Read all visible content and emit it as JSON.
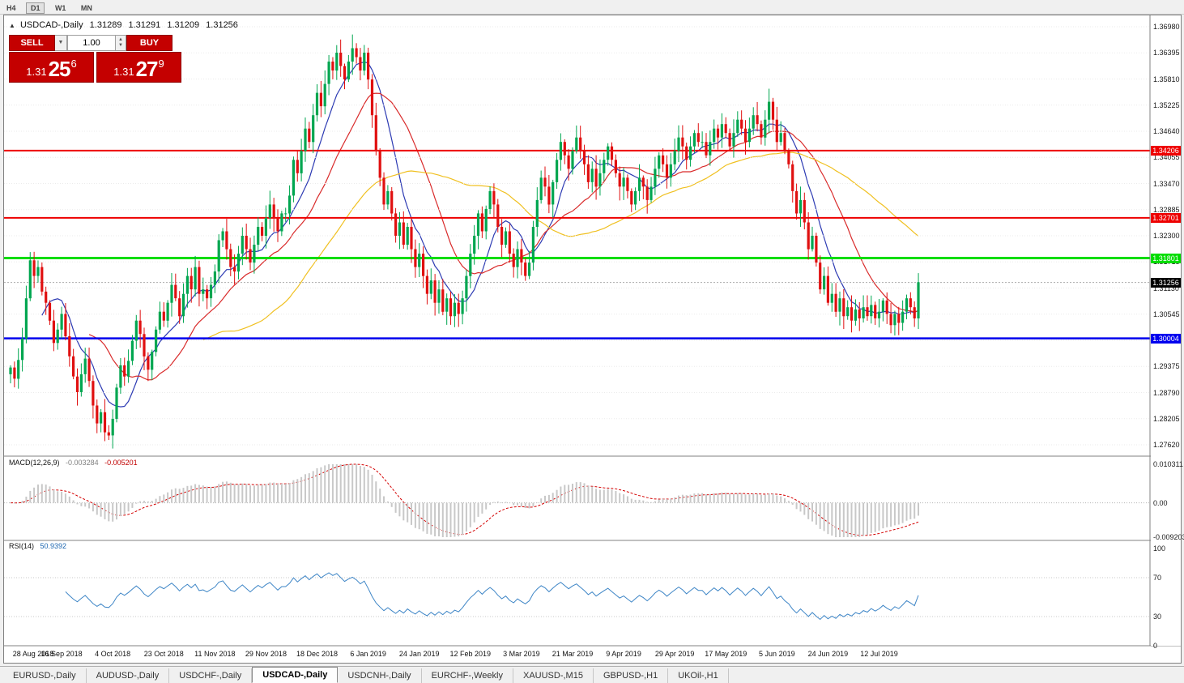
{
  "toolbar": {
    "timeframes": [
      "H4",
      "D1",
      "W1",
      "MN"
    ],
    "active": "D1"
  },
  "chart": {
    "symbol_title": "USDCAD-,Daily",
    "ohlc": {
      "open": "1.31289",
      "high": "1.31291",
      "low": "1.31209",
      "close": "1.31256"
    },
    "trade_panel": {
      "sell_label": "SELL",
      "buy_label": "BUY",
      "volume": "1.00",
      "sell_big": "1.31",
      "sell_pips": "25",
      "sell_sup": "6",
      "buy_big": "1.31",
      "buy_pips": "27",
      "buy_sup": "9"
    }
  },
  "macd": {
    "label": "MACD(12,26,9)",
    "value_main": "-0.003284",
    "value_signal": "-0.005201",
    "scale": [
      "0.010311",
      "0.00",
      "-0.009203"
    ]
  },
  "rsi": {
    "label": "RSI(14)",
    "value": "50.9392",
    "scale": [
      "100",
      "70",
      "30",
      "0"
    ]
  },
  "tabs": {
    "items": [
      "EURUSD-,Daily",
      "AUDUSD-,Daily",
      "USDCHF-,Daily",
      "USDCAD-,Daily",
      "USDCNH-,Daily",
      "EURCHF-,Weekly",
      "XAUUSD-,M15",
      "GBPUSD-,H1",
      "UKOil-,H1"
    ],
    "active": "USDCAD-,Daily"
  },
  "chart_data": {
    "type": "candlestick",
    "symbol": "USDCAD",
    "timeframe": "Daily",
    "ylim": [
      1.2762,
      1.3698
    ],
    "y_ticks": [
      "1.36980",
      "1.36395",
      "1.35810",
      "1.35225",
      "1.34640",
      "1.34055",
      "1.33470",
      "1.32885",
      "1.32300",
      "1.31715",
      "1.31130",
      "1.30545",
      "1.29960",
      "1.29375",
      "1.28790",
      "1.28205",
      "1.27620"
    ],
    "x_labels": [
      "28 Aug 2018",
      "16 Sep 2018",
      "4 Oct 2018",
      "23 Oct 2018",
      "11 Nov 2018",
      "29 Nov 2018",
      "18 Dec 2018",
      "6 Jan 2019",
      "24 Jan 2019",
      "12 Feb 2019",
      "3 Mar 2019",
      "21 Mar 2019",
      "9 Apr 2019",
      "29 Apr 2019",
      "17 May 2019",
      "5 Jun 2019",
      "24 Jun 2019",
      "12 Jul 2019"
    ],
    "closes": [
      1.2935,
      1.291,
      1.2952,
      1.3,
      1.309,
      1.3175,
      1.314,
      1.316,
      1.3105,
      1.308,
      1.304,
      1.299,
      1.302,
      1.3055,
      1.3005,
      1.296,
      1.2915,
      1.288,
      1.292,
      1.2955,
      1.2905,
      1.285,
      1.281,
      1.2835,
      1.279,
      1.2783,
      1.282,
      1.289,
      1.294,
      1.2915,
      1.295,
      1.2995,
      1.304,
      1.301,
      1.296,
      1.293,
      1.297,
      1.302,
      1.306,
      1.304,
      1.308,
      1.312,
      1.309,
      1.305,
      1.31,
      1.314,
      1.311,
      1.316,
      1.31,
      1.311,
      1.309,
      1.312,
      1.315,
      1.322,
      1.324,
      1.32,
      1.316,
      1.315,
      1.319,
      1.323,
      1.32,
      1.317,
      1.321,
      1.325,
      1.323,
      1.327,
      1.33,
      1.327,
      1.324,
      1.328,
      1.328,
      1.332,
      1.34,
      1.337,
      1.342,
      1.347,
      1.344,
      1.35,
      1.355,
      1.352,
      1.357,
      1.362,
      1.36,
      1.364,
      1.361,
      1.358,
      1.362,
      1.365,
      1.363,
      1.36,
      1.364,
      1.358,
      1.35,
      1.342,
      1.336,
      1.33,
      1.333,
      1.328,
      1.323,
      1.326,
      1.321,
      1.325,
      1.32,
      1.316,
      1.319,
      1.314,
      1.31,
      1.313,
      1.308,
      1.311,
      1.306,
      1.309,
      1.305,
      1.308,
      1.3055,
      1.309,
      1.314,
      1.319,
      1.323,
      1.328,
      1.324,
      1.329,
      1.333,
      1.33,
      1.325,
      1.321,
      1.324,
      1.319,
      1.316,
      1.32,
      1.317,
      1.314,
      1.317,
      1.325,
      1.331,
      1.336,
      1.334,
      1.33,
      1.335,
      1.34,
      1.344,
      1.341,
      1.338,
      1.342,
      1.345,
      1.342,
      1.339,
      1.335,
      1.338,
      1.334,
      1.337,
      1.34,
      1.343,
      1.34,
      1.337,
      1.334,
      1.336,
      1.333,
      1.33,
      1.333,
      1.336,
      1.334,
      1.331,
      1.334,
      1.338,
      1.341,
      1.339,
      1.336,
      1.339,
      1.342,
      1.345,
      1.343,
      1.34,
      1.343,
      1.346,
      1.344,
      1.344,
      1.341,
      1.344,
      1.347,
      1.345,
      1.348,
      1.346,
      1.343,
      1.346,
      1.349,
      1.347,
      1.344,
      1.347,
      1.35,
      1.348,
      1.345,
      1.349,
      1.353,
      1.349,
      1.344,
      1.346,
      1.342,
      1.339,
      1.333,
      1.328,
      1.331,
      1.326,
      1.32,
      1.323,
      1.317,
      1.311,
      1.314,
      1.308,
      1.31,
      1.306,
      1.309,
      1.305,
      1.307,
      1.304,
      1.3065,
      1.3045,
      1.307,
      1.305,
      1.3075,
      1.3045,
      1.306,
      1.3085,
      1.3055,
      1.303,
      1.3055,
      1.3035,
      1.306,
      1.309,
      1.307,
      1.3045,
      1.3126
    ],
    "overlays": {
      "sma_fast": {
        "period": 9,
        "color": "#2d3bb3"
      },
      "sma_mid": {
        "period": 21,
        "color": "#d92b2b"
      },
      "sma_slow": {
        "period": 50,
        "color": "#f0c020"
      }
    },
    "hlines": [
      {
        "price": 1.34206,
        "color": "#ee0000",
        "width": 2
      },
      {
        "price": 1.32701,
        "color": "#ee0000",
        "width": 2
      },
      {
        "price": 1.31801,
        "color": "#00dd00",
        "width": 3
      },
      {
        "price": 1.30004,
        "color": "#0000ee",
        "width": 2.5
      }
    ],
    "current_price": 1.31256,
    "candle_up_color": "#00a650",
    "candle_down_color": "#e01010",
    "indicators": {
      "macd": {
        "params": [
          12,
          26,
          9
        ],
        "main": -0.003284,
        "signal": -0.005201,
        "range": [
          -0.009203,
          0.010311
        ],
        "hist_color": "#c8c8c8",
        "signal_color": "#d40000"
      },
      "rsi": {
        "period": 14,
        "value": 50.9392,
        "levels": [
          30,
          70
        ],
        "range": [
          0,
          100
        ],
        "color": "#3d85c6"
      }
    }
  }
}
